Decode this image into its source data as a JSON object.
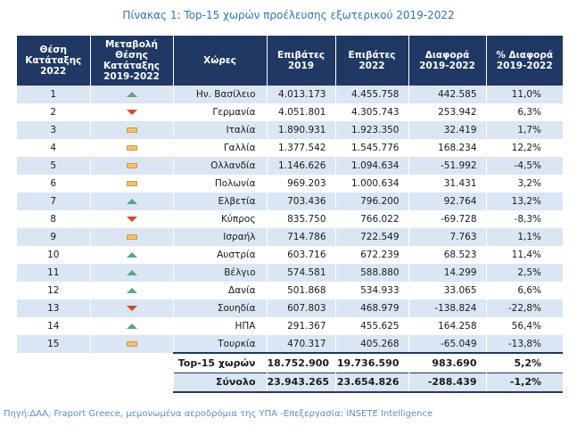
{
  "title": "Πίνακας 1: Top-15 χωρών προέλευσης εξωτερικού 2019-2022",
  "headers": [
    "Θέση\nΚατάταξης\n2022",
    "Μεταβολή\nΘέσης\nΚατάταξης\n2019-2022",
    "Χώρες",
    "Επιβάτες\n2019",
    "Επιβάτες\n2022",
    "Διαφορά\n2019-2022",
    "% Διαφορά\n2019-2022"
  ],
  "rows": [
    {
      "rank": "1",
      "change": "up",
      "country": "Ην. Βασίλειο",
      "p2019": "4.013.173",
      "p2022": "4.455.758",
      "diff": "442.585",
      "pct": "11,0%"
    },
    {
      "rank": "2",
      "change": "down",
      "country": "Γερμανία",
      "p2019": "4.051.801",
      "p2022": "4.305.743",
      "diff": "253.942",
      "pct": "6,3%"
    },
    {
      "rank": "3",
      "change": "flat",
      "country": "Ιταλία",
      "p2019": "1.890.931",
      "p2022": "1.923.350",
      "diff": "32.419",
      "pct": "1,7%"
    },
    {
      "rank": "4",
      "change": "flat",
      "country": "Γαλλία",
      "p2019": "1.377.542",
      "p2022": "1.545.776",
      "diff": "168.234",
      "pct": "12,2%"
    },
    {
      "rank": "5",
      "change": "flat",
      "country": "Ολλανδία",
      "p2019": "1.146.626",
      "p2022": "1.094.634",
      "diff": "-51.992",
      "pct": "-4,5%"
    },
    {
      "rank": "6",
      "change": "flat",
      "country": "Πολωνία",
      "p2019": "969.203",
      "p2022": "1.000.634",
      "diff": "31.431",
      "pct": "3,2%"
    },
    {
      "rank": "7",
      "change": "up",
      "country": "Ελβετία",
      "p2019": "703.436",
      "p2022": "796.200",
      "diff": "92.764",
      "pct": "13,2%"
    },
    {
      "rank": "8",
      "change": "down",
      "country": "Κύπρος",
      "p2019": "835.750",
      "p2022": "766.022",
      "diff": "-69.728",
      "pct": "-8,3%"
    },
    {
      "rank": "9",
      "change": "flat",
      "country": "Ισραήλ",
      "p2019": "714.786",
      "p2022": "722.549",
      "diff": "7.763",
      "pct": "1,1%"
    },
    {
      "rank": "10",
      "change": "up",
      "country": "Αυστρία",
      "p2019": "603.716",
      "p2022": "672.239",
      "diff": "68.523",
      "pct": "11,4%"
    },
    {
      "rank": "11",
      "change": "up",
      "country": "Βέλγιο",
      "p2019": "574.581",
      "p2022": "588.880",
      "diff": "14.299",
      "pct": "2,5%"
    },
    {
      "rank": "12",
      "change": "up",
      "country": "Δανία",
      "p2019": "501.868",
      "p2022": "534.933",
      "diff": "33.065",
      "pct": "6,6%"
    },
    {
      "rank": "13",
      "change": "down",
      "country": "Σουηδία",
      "p2019": "607.803",
      "p2022": "468.979",
      "diff": "-138.824",
      "pct": "-22,8%"
    },
    {
      "rank": "14",
      "change": "up",
      "country": "ΗΠΑ",
      "p2019": "291.367",
      "p2022": "455.625",
      "diff": "164.258",
      "pct": "56,4%"
    },
    {
      "rank": "15",
      "change": "flat",
      "country": "Τουρκία",
      "p2019": "470.317",
      "p2022": "405.268",
      "diff": "-65.049",
      "pct": "-13,8%"
    }
  ],
  "totals": [
    {
      "label": "Top-15 χωρών",
      "p2019": "18.752.900",
      "p2022": "19.736.590",
      "diff": "983.690",
      "pct": "5,2%"
    },
    {
      "label": "Σύνολο",
      "p2019": "23.943.265",
      "p2022": "23.654.826",
      "diff": "-288.439",
      "pct": "-1,2%"
    }
  ],
  "icons": {
    "up": "triangle-up-icon",
    "down": "triangle-down-icon",
    "flat": "dash-icon"
  },
  "colors": {
    "header_bg": "#1f3864",
    "band": "#dbe6f4",
    "up": "#5aa58c",
    "down": "#d9472b",
    "flat": "#f2c26b",
    "title": "#2e75b6"
  },
  "source": "Πηγή:ΔΑΑ, Fraport Greece, μεμονωμένα αεροδρόμια της ΥΠΑ -Επεξεργασία: INSETE Intelligence"
}
